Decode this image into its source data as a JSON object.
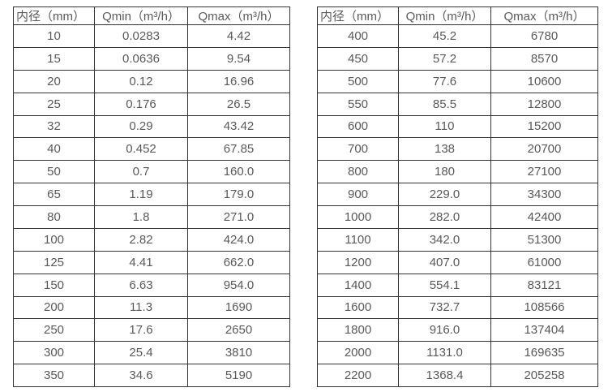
{
  "page": {
    "background_color": "#ffffff",
    "border_color": "#333333",
    "text_color": "#595959"
  },
  "tables": [
    {
      "id": "small-diameters",
      "headers": [
        "内径（mm）",
        "Qmin（m³/h）",
        "Qmax（m³/h）"
      ],
      "rows": [
        [
          "10",
          "0.0283",
          "4.42"
        ],
        [
          "15",
          "0.0636",
          "9.54"
        ],
        [
          "20",
          "0.12",
          "16.96"
        ],
        [
          "25",
          "0.176",
          "26.5"
        ],
        [
          "32",
          "0.29",
          "43.42"
        ],
        [
          "40",
          "0.452",
          "67.85"
        ],
        [
          "50",
          "0.7",
          "160.0"
        ],
        [
          "65",
          "1.19",
          "179.0"
        ],
        [
          "80",
          "1.8",
          "271.0"
        ],
        [
          "100",
          "2.82",
          "424.0"
        ],
        [
          "125",
          "4.41",
          "662.0"
        ],
        [
          "150",
          "6.63",
          "954.0"
        ],
        [
          "200",
          "11.3",
          "1690"
        ],
        [
          "250",
          "17.6",
          "2650"
        ],
        [
          "300",
          "25.4",
          "3810"
        ],
        [
          "350",
          "34.6",
          "5190"
        ]
      ]
    },
    {
      "id": "large-diameters",
      "headers": [
        "内径（mm）",
        "Qmin（m³/h）",
        "Qmax（m³/h）"
      ],
      "rows": [
        [
          "400",
          "45.2",
          "6780"
        ],
        [
          "450",
          "57.2",
          "8570"
        ],
        [
          "500",
          "77.6",
          "10600"
        ],
        [
          "550",
          "85.5",
          "12800"
        ],
        [
          "600",
          "110",
          "15200"
        ],
        [
          "700",
          "138",
          "20700"
        ],
        [
          "800",
          "180",
          "27100"
        ],
        [
          "900",
          "229.0",
          "34300"
        ],
        [
          "1000",
          "282.0",
          "42400"
        ],
        [
          "1100",
          "342.0",
          "51300"
        ],
        [
          "1200",
          "407.0",
          "61000"
        ],
        [
          "1400",
          "554.1",
          "83121"
        ],
        [
          "1600",
          "732.7",
          "108566"
        ],
        [
          "1800",
          "916.0",
          "137404"
        ],
        [
          "2000",
          "1131.0",
          "169635"
        ],
        [
          "2200",
          "1368.4",
          "205258"
        ]
      ]
    }
  ]
}
